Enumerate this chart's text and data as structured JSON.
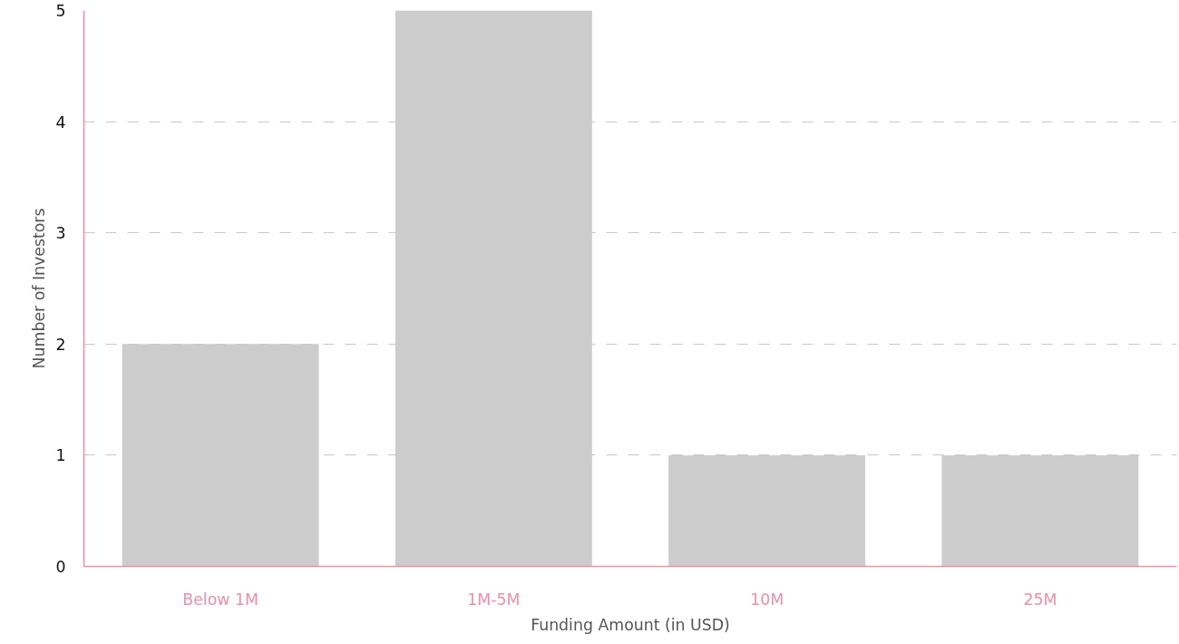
{
  "chart_data": {
    "type": "bar",
    "xlabel": "Funding Amount (in USD)",
    "ylabel": "Number of Investors",
    "categories": [
      "Below 1M",
      "1M-5M",
      "10M",
      "25M"
    ],
    "values": [
      2,
      5,
      1,
      1
    ],
    "color": "#cccccc",
    "ylim": [
      0,
      5
    ],
    "yticks": [
      0,
      1,
      2,
      3,
      4,
      5
    ],
    "grid": "y"
  }
}
